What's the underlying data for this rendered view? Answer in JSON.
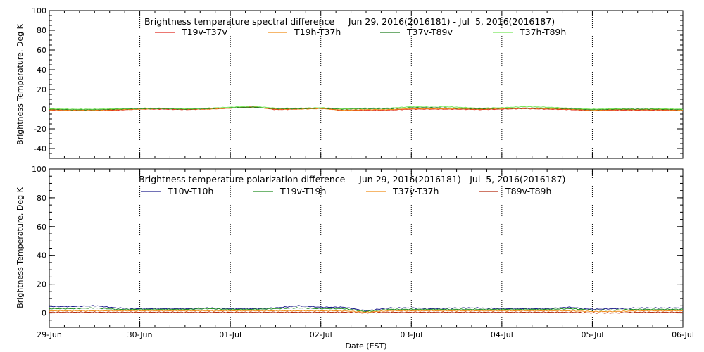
{
  "chart_data": [
    {
      "type": "line",
      "title": "Brightness temperature spectral difference     Jun 29, 2016(2016181) - Jul  5, 2016(2016187)",
      "ylabel": "Brightness Temperature, Deg K",
      "xlabel": "",
      "ylim": [
        -50,
        100
      ],
      "yticks": [
        -40,
        -20,
        0,
        20,
        40,
        60,
        80,
        100
      ],
      "xlim": [
        0,
        7
      ],
      "xticks": [
        0,
        1,
        2,
        3,
        4,
        5,
        6,
        7
      ],
      "x_tick_labels": [
        "",
        "",
        "",
        "",
        "",
        "",
        "",
        ""
      ],
      "vlines": [
        1,
        2,
        3,
        4,
        5,
        6
      ],
      "x": [
        0,
        0.25,
        0.5,
        0.75,
        1,
        1.25,
        1.5,
        1.75,
        2,
        2.25,
        2.5,
        2.75,
        3,
        3.25,
        3.5,
        3.75,
        4,
        4.25,
        4.5,
        4.75,
        5,
        5.25,
        5.5,
        5.75,
        6,
        6.25,
        6.5,
        6.75,
        7
      ],
      "series": [
        {
          "name": "T19v-T37v",
          "color": "#e0281e",
          "values": [
            -1,
            -1,
            -1.5,
            -1,
            0,
            0,
            -0.5,
            0,
            1,
            2.5,
            -0.5,
            0,
            1,
            -1.5,
            -1,
            -1,
            0,
            0,
            0,
            -0.5,
            0,
            0.5,
            0,
            -0.5,
            -1.5,
            -1,
            -1,
            -1,
            -1.5
          ]
        },
        {
          "name": "T19h-T37h",
          "color": "#f08c14",
          "values": [
            -0.5,
            -1,
            -1,
            -0.5,
            0,
            0.5,
            0,
            0,
            1,
            2,
            0,
            0,
            0.5,
            -1,
            -0.5,
            -0.5,
            0.5,
            0.5,
            0.5,
            0,
            0.5,
            1,
            0.5,
            0,
            -1,
            -0.5,
            -0.5,
            -0.5,
            -1
          ]
        },
        {
          "name": "T37v-T89v",
          "color": "#1e7d1e",
          "values": [
            0,
            -0.5,
            -0.5,
            0,
            0.5,
            0.5,
            0,
            0.5,
            1.5,
            2,
            0.5,
            0.5,
            1,
            0,
            0.5,
            0.5,
            1.5,
            1.5,
            1,
            0.5,
            1,
            1,
            1,
            0.5,
            -0.5,
            0,
            0,
            0,
            -0.5
          ]
        },
        {
          "name": "T37h-T89h",
          "color": "#78e65a",
          "values": [
            0.5,
            0,
            0,
            0.5,
            1,
            1,
            0.5,
            1,
            2,
            3,
            1,
            1,
            1.5,
            0.5,
            1,
            1,
            2.5,
            3,
            2,
            1,
            1.5,
            2.5,
            2,
            1,
            0,
            0.5,
            1,
            0.5,
            0
          ]
        }
      ]
    },
    {
      "type": "line",
      "title": "Brightness temperature polarization difference     Jun 29, 2016(2016181) - Jul  5, 2016(2016187)",
      "ylabel": "Brightness Temperature, Deg K",
      "xlabel": "Date (EST)",
      "ylim": [
        -10,
        100
      ],
      "yticks": [
        0,
        20,
        40,
        60,
        80,
        100
      ],
      "xlim": [
        0,
        7
      ],
      "xticks": [
        0,
        1,
        2,
        3,
        4,
        5,
        6,
        7
      ],
      "x_tick_labels": [
        "29-Jun",
        "30-Jun",
        "01-Jul",
        "02-Jul",
        "03-Jul",
        "04-Jul",
        "05-Jul",
        "06-Jul"
      ],
      "vlines": [
        1,
        2,
        3,
        4,
        5,
        6
      ],
      "x": [
        0,
        0.25,
        0.5,
        0.75,
        1,
        1.25,
        1.5,
        1.75,
        2,
        2.25,
        2.5,
        2.75,
        3,
        3.25,
        3.5,
        3.75,
        4,
        4.25,
        4.5,
        4.75,
        5,
        5.25,
        5.5,
        5.75,
        6,
        6.25,
        6.5,
        6.75,
        7
      ],
      "series": [
        {
          "name": "T10v-T10h",
          "color": "#1e1e8c",
          "values": [
            4.5,
            4.5,
            5,
            3.5,
            3,
            3,
            3,
            3.5,
            3,
            3,
            3.5,
            5,
            4,
            4,
            1.5,
            3.5,
            3.5,
            3,
            3.5,
            3.5,
            3,
            3,
            3,
            4,
            2.5,
            3,
            3.5,
            3.5,
            3.5
          ]
        },
        {
          "name": "T19v-T19h",
          "color": "#1e8c1e",
          "values": [
            3,
            3,
            3.5,
            2.5,
            2.5,
            2.5,
            2.5,
            3,
            2.5,
            2.5,
            3,
            3.5,
            3,
            3,
            1,
            2.5,
            2.5,
            2.5,
            2.5,
            2.5,
            2.5,
            2.5,
            2.5,
            3,
            2,
            2,
            2.5,
            2.5,
            2.5
          ]
        },
        {
          "name": "T37v-T37h",
          "color": "#f08c14",
          "values": [
            1.5,
            1.5,
            1.5,
            1.5,
            1.5,
            1.5,
            1.5,
            1.5,
            1.5,
            1.5,
            1.5,
            1.5,
            1.5,
            1.5,
            0.5,
            1.5,
            1.5,
            1.5,
            1.5,
            1.5,
            1.5,
            1.5,
            1.5,
            1.5,
            1,
            1,
            1.5,
            1.5,
            1.5
          ]
        },
        {
          "name": "T89v-T89h",
          "color": "#b4280a",
          "values": [
            0.5,
            0.5,
            0.5,
            0.5,
            0.5,
            0.5,
            0.5,
            0.5,
            0.5,
            0.5,
            0.5,
            0.5,
            0.5,
            0.5,
            0,
            0.5,
            0.5,
            0.5,
            0.5,
            0.5,
            0.5,
            0.5,
            0.5,
            0.5,
            0,
            0,
            0.5,
            0.5,
            0.5
          ]
        }
      ]
    }
  ]
}
